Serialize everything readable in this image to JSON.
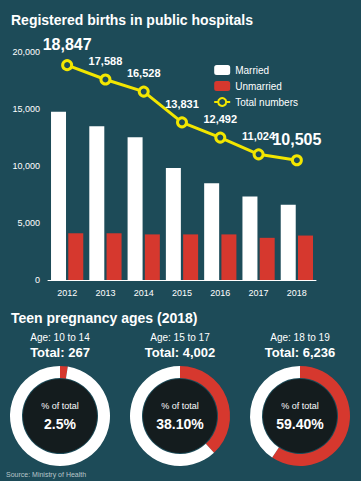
{
  "chart_data": [
    {
      "type": "bar",
      "title": "Registered births in public hospitals",
      "categories": [
        "2012",
        "2013",
        "2014",
        "2015",
        "2016",
        "2017",
        "2018"
      ],
      "series": [
        {
          "name": "Married",
          "type": "bar",
          "color": "#ffffff",
          "values": [
            14750,
            13490,
            12530,
            9830,
            8490,
            7320,
            6600
          ]
        },
        {
          "name": "Unmarried",
          "type": "bar",
          "color": "#d6382e",
          "values": [
            4100,
            4100,
            4000,
            4000,
            4000,
            3700,
            3900
          ]
        },
        {
          "name": "Total numbers",
          "type": "line",
          "color": "#f2e600",
          "marker": "circle",
          "line_style": "solid",
          "data_labels": true,
          "values": [
            18847,
            17588,
            16528,
            13831,
            12492,
            11024,
            10505
          ],
          "value_labels": [
            "18,847",
            "17,588",
            "16,528",
            "13,831",
            "12,492",
            "11,024",
            "10,505"
          ]
        }
      ],
      "ylim": [
        0,
        20000
      ],
      "yticks": [
        0,
        {
          "value": 5000,
          "label": "5,000"
        },
        {
          "value": 10000,
          "label": "10,000"
        },
        {
          "value": 15000,
          "label": "15,000"
        },
        {
          "value": 20000,
          "label": "20,000"
        }
      ],
      "grid": false,
      "legend": "upper right"
    },
    {
      "type": "pie",
      "title": "Teen pregnancy ages (2018)",
      "categories": [
        "Age: 10 to 14",
        "Age: 15 to 17",
        "Age: 18 to 19"
      ],
      "total_labels": [
        "Total: 267",
        "Total: 4,002",
        "Total: 6,236"
      ],
      "center_label": "% of total",
      "values": [
        2.5,
        38.1,
        59.4
      ],
      "value_labels": [
        "2.5%",
        "38.10%",
        "59.40%"
      ],
      "color": "#d6382e",
      "data_labels": true
    }
  ],
  "source": "Source: Ministry of Health"
}
